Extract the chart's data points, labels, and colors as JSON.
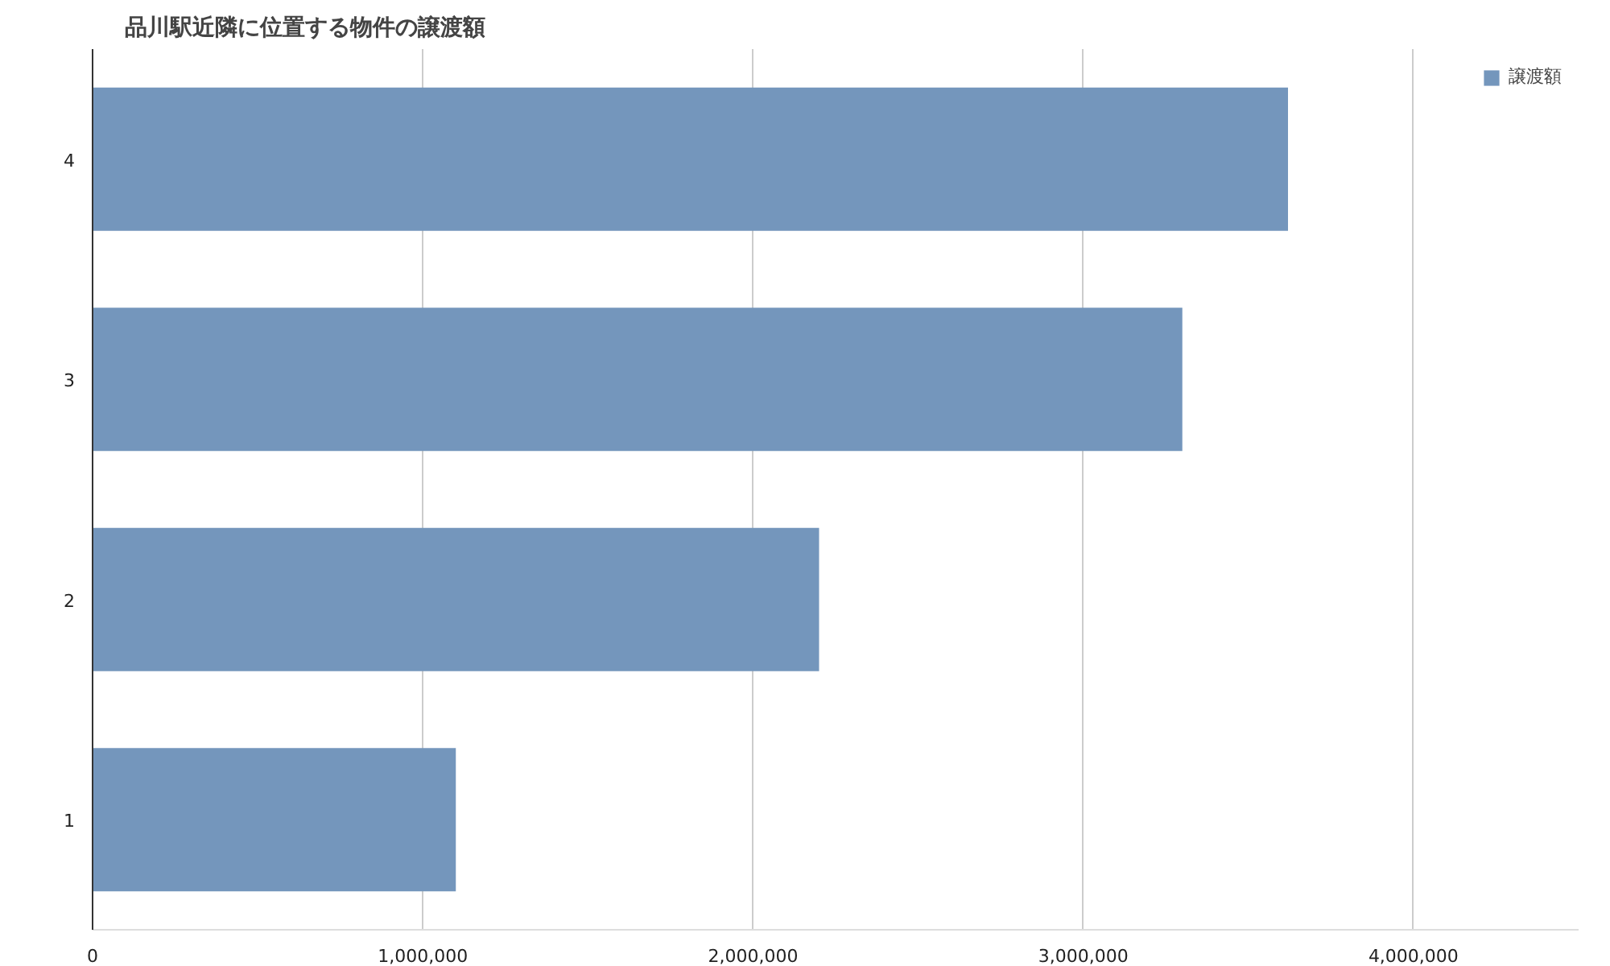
{
  "chart_data": {
    "type": "bar",
    "orientation": "horizontal",
    "title": "品川駅近隣に位置する物件の譲渡額",
    "categories": [
      "4",
      "3",
      "2",
      "1"
    ],
    "series": [
      {
        "name": "譲渡額",
        "color": "#7496bc",
        "values": [
          3620000,
          3300000,
          2200000,
          1100000
        ]
      }
    ],
    "xlim": [
      0,
      4500000
    ],
    "xticks": [
      0,
      {
        "value": 1000000,
        "label": "1,000,000"
      },
      {
        "value": 2000000,
        "label": "2,000,000"
      },
      {
        "value": 3000000,
        "label": "3,000,000"
      },
      {
        "value": 4000000,
        "label": "4,000,000"
      }
    ],
    "grid": "x",
    "legend": "top right"
  }
}
